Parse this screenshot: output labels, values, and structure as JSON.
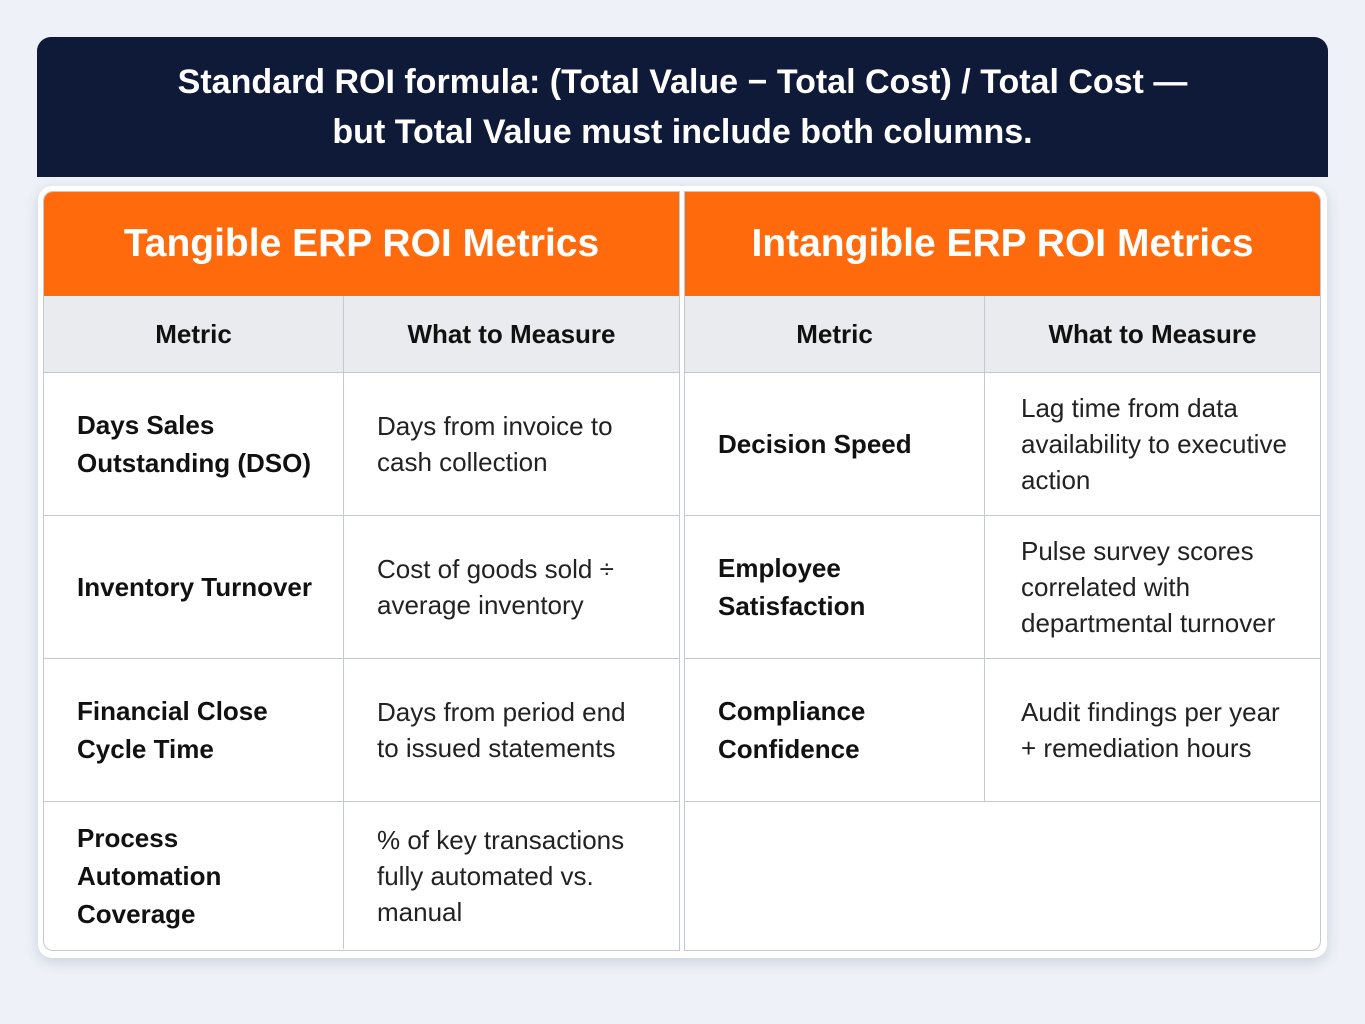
{
  "banner": {
    "line1": "Standard ROI formula: (Total Value − Total Cost) / Total Cost —",
    "line2": "but Total Value must include both columns."
  },
  "tangible": {
    "title": "Tangible ERP ROI Metrics",
    "col_metric": "Metric",
    "col_measure": "What to Measure",
    "rows": [
      {
        "metric": "Days Sales Outstanding (DSO)",
        "measure": "Days from invoice to cash collection"
      },
      {
        "metric": "Inventory Turnover",
        "measure": "Cost of goods sold ÷ average inventory"
      },
      {
        "metric": "Financial Close Cycle Time",
        "measure": "Days from period end to issued statements"
      },
      {
        "metric": "Process Automation Coverage",
        "measure": "% of key transactions fully automated vs. manual"
      }
    ]
  },
  "intangible": {
    "title": "Intangible ERP ROI Metrics",
    "col_metric": "Metric",
    "col_measure": "What to Measure",
    "rows": [
      {
        "metric": "Decision Speed",
        "measure": "Lag time from data availability to executive action"
      },
      {
        "metric": "Employee Satisfaction",
        "measure": "Pulse survey scores correlated with departmental turnover"
      },
      {
        "metric": "Compliance Confidence",
        "measure": "Audit findings per year + remediation hours"
      }
    ]
  },
  "colors": {
    "banner_bg": "#0e1a38",
    "accent_orange": "#ff6a0d",
    "header_gray": "#eaebee"
  }
}
